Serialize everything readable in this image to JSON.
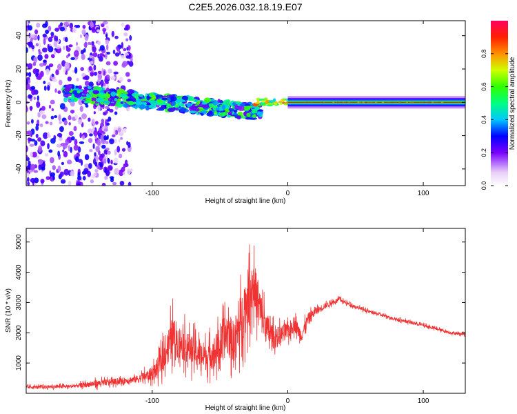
{
  "title": "C2E5.2026.032.18.19.E07",
  "chart_data": [
    {
      "type": "heatmap",
      "xlabel": "Height of straight line (km)",
      "ylabel": "Frequency (Hz)",
      "xlim": [
        -193,
        131
      ],
      "ylim": [
        -50,
        49
      ],
      "x_ticks": [
        -100,
        0,
        100
      ],
      "y_ticks": [
        -40,
        -20,
        0,
        20,
        40
      ],
      "colorbar": {
        "label": "Normalized spectral amplitude",
        "range": [
          0,
          1
        ],
        "ticks": [
          0.0,
          0.2,
          0.4,
          0.6,
          0.8
        ]
      },
      "features": [
        {
          "desc": "diffuse scatter",
          "x_range": [
            -193,
            -115
          ],
          "y_range": [
            -50,
            49
          ],
          "amplitude": 0.25
        },
        {
          "desc": "tilted band",
          "x_start": -165,
          "x_end": -20,
          "y_start": 6,
          "y_end": -6,
          "amplitude": 0.45
        },
        {
          "desc": "narrow stable line",
          "x_start": 0,
          "x_end": 131,
          "y": 0,
          "amplitude": 0.9
        }
      ]
    },
    {
      "type": "line",
      "xlabel": "Height of straight line (km)",
      "ylabel": "SNR (10 * v/v)",
      "xlim": [
        -193,
        131
      ],
      "ylim": [
        0,
        5450
      ],
      "x_ticks": [
        -100,
        0,
        100
      ],
      "y_ticks": [
        1000,
        2000,
        3000,
        4000,
        5000
      ],
      "series": [
        {
          "name": "SNR",
          "color": "#f03232",
          "x": [
            -193,
            -160,
            -140,
            -120,
            -110,
            -100,
            -95,
            -90,
            -85,
            -80,
            -70,
            -60,
            -50,
            -45,
            -40,
            -35,
            -30,
            -25,
            -22,
            -18,
            -15,
            -10,
            -5,
            0,
            5,
            10,
            15,
            20,
            30,
            38,
            45,
            60,
            80,
            100,
            120,
            131
          ],
          "values": [
            200,
            230,
            330,
            420,
            480,
            650,
            900,
            1400,
            1900,
            1700,
            1400,
            1200,
            1500,
            2000,
            1700,
            2300,
            3100,
            3600,
            3000,
            2400,
            2100,
            1800,
            1950,
            2050,
            2300,
            1900,
            2450,
            2700,
            2950,
            3100,
            2950,
            2700,
            2450,
            2250,
            2000,
            1950
          ],
          "spread": [
            100,
            110,
            220,
            200,
            250,
            450,
            700,
            1000,
            1300,
            1100,
            1000,
            900,
            1200,
            1500,
            1400,
            1700,
            1900,
            1700,
            1500,
            1200,
            1000,
            700,
            600,
            550,
            500,
            450,
            400,
            280,
            160,
            130,
            110,
            100,
            100,
            100,
            90,
            90
          ]
        }
      ]
    }
  ]
}
